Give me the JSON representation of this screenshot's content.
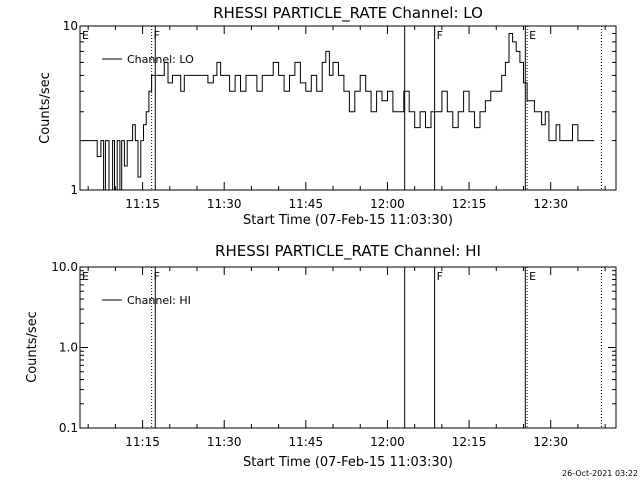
{
  "chart_data": [
    {
      "type": "line",
      "title": "RHESSI PARTICLE_RATE Channel: LO",
      "xlabel": "Start Time (07-Feb-15 11:03:30)",
      "ylabel": "Counts/sec",
      "yscale": "log",
      "ylim": [
        1,
        10
      ],
      "xlim": [
        "11:03:30",
        "12:42:00"
      ],
      "xticks": [
        "11:15",
        "11:30",
        "11:45",
        "12:00",
        "12:15",
        "12:30"
      ],
      "yticks": [
        "1",
        "10"
      ],
      "legend": {
        "position": "top-left",
        "entries": [
          "Channel: LO"
        ]
      },
      "markers": [
        {
          "label": "E",
          "time": "11:03:30",
          "style": "dotted"
        },
        {
          "label": "F",
          "time": "11:16:40",
          "style": "dotted"
        },
        {
          "label": "",
          "time": "11:17:20",
          "style": "solid"
        },
        {
          "label": "",
          "time": "12:03:10",
          "style": "solid"
        },
        {
          "label": "F",
          "time": "12:08:40",
          "style": "solid"
        },
        {
          "label": "",
          "time": "12:25:20",
          "style": "solid"
        },
        {
          "label": "E",
          "time": "12:25:40",
          "style": "dotted"
        },
        {
          "label": "",
          "time": "12:39:20",
          "style": "dotted"
        }
      ],
      "series": [
        {
          "name": "Channel: LO",
          "x": [
            "11:04:00",
            "11:05:00",
            "11:06:00",
            "11:06:40",
            "11:07:20",
            "11:07:50",
            "11:08:10",
            "11:08:50",
            "11:09:30",
            "11:09:50",
            "11:10:20",
            "11:10:50",
            "11:11:10",
            "11:11:40",
            "11:12:10",
            "11:12:40",
            "11:13:10",
            "11:13:40",
            "11:14:10",
            "11:14:40",
            "11:15:10",
            "11:15:40",
            "11:16:10",
            "11:16:40",
            "11:17:20",
            "11:18:00",
            "11:19:00",
            "11:19:40",
            "11:20:30",
            "11:21:20",
            "11:22:00",
            "11:22:40",
            "11:23:30",
            "11:24:20",
            "11:25:00",
            "11:26:00",
            "11:27:00",
            "11:28:00",
            "11:28:40",
            "11:29:20",
            "11:30:00",
            "11:31:00",
            "11:32:00",
            "11:33:00",
            "11:34:00",
            "11:35:00",
            "11:36:00",
            "11:37:00",
            "11:38:00",
            "11:39:00",
            "11:40:00",
            "11:41:00",
            "11:42:00",
            "11:43:00",
            "11:44:00",
            "11:45:00",
            "11:46:00",
            "11:47:00",
            "11:48:00",
            "11:48:40",
            "11:49:20",
            "11:50:00",
            "11:51:00",
            "11:52:00",
            "11:53:00",
            "11:54:00",
            "11:55:00",
            "11:56:00",
            "11:57:00",
            "11:58:00",
            "11:59:00",
            "12:00:00",
            "12:01:00",
            "12:02:00",
            "12:03:00",
            "12:04:00",
            "12:05:00",
            "12:06:00",
            "12:07:00",
            "12:08:00",
            "12:09:00",
            "12:10:00",
            "12:11:00",
            "12:12:00",
            "12:13:00",
            "12:14:00",
            "12:15:00",
            "12:16:00",
            "12:17:00",
            "12:18:00",
            "12:19:00",
            "12:20:00",
            "12:21:00",
            "12:21:40",
            "12:22:20",
            "12:23:00",
            "12:23:40",
            "12:24:20",
            "12:25:00",
            "12:25:40",
            "12:26:20",
            "12:27:00",
            "12:27:40",
            "12:28:20",
            "12:29:00",
            "12:29:40",
            "12:30:20",
            "12:31:00",
            "12:31:40",
            "12:32:20",
            "12:33:00",
            "12:34:00",
            "12:35:00",
            "12:36:00",
            "12:37:00",
            "12:38:00"
          ],
          "y": [
            2,
            2,
            2,
            1.6,
            2,
            1,
            2,
            1,
            2,
            1,
            2,
            1,
            2,
            1.4,
            2,
            2,
            2.5,
            2,
            1.2,
            2,
            2.5,
            3,
            4,
            5,
            5,
            5,
            6,
            4.5,
            5,
            5,
            4,
            5,
            5,
            5,
            5,
            5,
            4.5,
            5,
            6,
            5,
            5,
            4,
            5,
            4,
            5,
            5,
            4,
            5,
            5,
            6,
            5,
            4,
            5,
            6,
            4.5,
            4,
            5,
            4,
            6,
            7,
            5,
            6,
            5,
            4,
            3,
            4,
            5,
            4,
            3,
            4,
            3.5,
            4,
            3,
            3,
            4,
            3,
            2.4,
            3,
            2.4,
            3,
            3,
            4,
            3,
            2.4,
            3,
            4,
            3,
            2.4,
            3,
            3.5,
            4,
            4,
            5,
            6,
            9,
            8,
            7,
            6,
            4.5,
            3.5,
            3.5,
            3,
            3,
            2.5,
            3,
            2,
            2,
            2.5,
            2,
            2,
            2,
            2.5,
            2,
            2,
            2,
            2
          ]
        }
      ]
    },
    {
      "type": "line",
      "title": "RHESSI PARTICLE_RATE Channel: HI",
      "xlabel": "Start Time (07-Feb-15 11:03:30)",
      "ylabel": "Counts/sec",
      "yscale": "log",
      "ylim": [
        0.1,
        10
      ],
      "xlim": [
        "11:03:30",
        "12:42:00"
      ],
      "xticks": [
        "11:15",
        "11:30",
        "11:45",
        "12:00",
        "12:15",
        "12:30"
      ],
      "yticks": [
        "0.1",
        "1.0",
        "10.0"
      ],
      "legend": {
        "position": "top-left",
        "entries": [
          "Channel: HI"
        ]
      },
      "markers": [
        {
          "label": "E",
          "time": "11:03:30",
          "style": "dotted"
        },
        {
          "label": "F",
          "time": "11:16:40",
          "style": "dotted"
        },
        {
          "label": "",
          "time": "11:17:20",
          "style": "solid"
        },
        {
          "label": "",
          "time": "12:03:10",
          "style": "solid"
        },
        {
          "label": "F",
          "time": "12:08:40",
          "style": "solid"
        },
        {
          "label": "",
          "time": "12:25:20",
          "style": "solid"
        },
        {
          "label": "E",
          "time": "12:25:40",
          "style": "dotted"
        },
        {
          "label": "",
          "time": "12:39:20",
          "style": "dotted"
        }
      ],
      "series": [
        {
          "name": "Channel: HI",
          "x": [],
          "y": []
        }
      ]
    }
  ],
  "footer": {
    "timestamp": "26-Oct-2021 03:22"
  }
}
